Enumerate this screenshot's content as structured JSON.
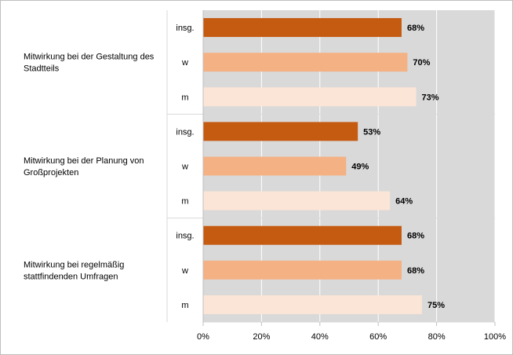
{
  "chart_data": {
    "type": "bar",
    "orientation": "horizontal",
    "xlim": [
      0,
      100
    ],
    "x_ticks": [
      "0%",
      "20%",
      "40%",
      "60%",
      "80%",
      "100%"
    ],
    "grid": true,
    "legend": "none",
    "colors": {
      "insg.": "#c55a11",
      "w": "#f4b183",
      "m": "#fbe5d6",
      "plot_background": "#d9d9d9",
      "gridline": "#ffffff"
    },
    "groups": [
      {
        "label_lines": [
          "Mitwirkung bei der Gestaltung des",
          "Stadtteils"
        ],
        "bars": [
          {
            "category": "insg.",
            "value": 68,
            "label": "68%"
          },
          {
            "category": "w",
            "value": 70,
            "label": "70%"
          },
          {
            "category": "m",
            "value": 73,
            "label": "73%"
          }
        ]
      },
      {
        "label_lines": [
          "Mitwirkung bei der Planung von",
          "Großprojekten"
        ],
        "bars": [
          {
            "category": "insg.",
            "value": 53,
            "label": "53%"
          },
          {
            "category": "w",
            "value": 49,
            "label": "49%"
          },
          {
            "category": "m",
            "value": 64,
            "label": "64%"
          }
        ]
      },
      {
        "label_lines": [
          "Mitwirkung bei regelmäßig",
          "stattfindenden Umfragen"
        ],
        "bars": [
          {
            "category": "insg.",
            "value": 68,
            "label": "68%"
          },
          {
            "category": "w",
            "value": 68,
            "label": "68%"
          },
          {
            "category": "m",
            "value": 75,
            "label": "75%"
          }
        ]
      }
    ]
  }
}
